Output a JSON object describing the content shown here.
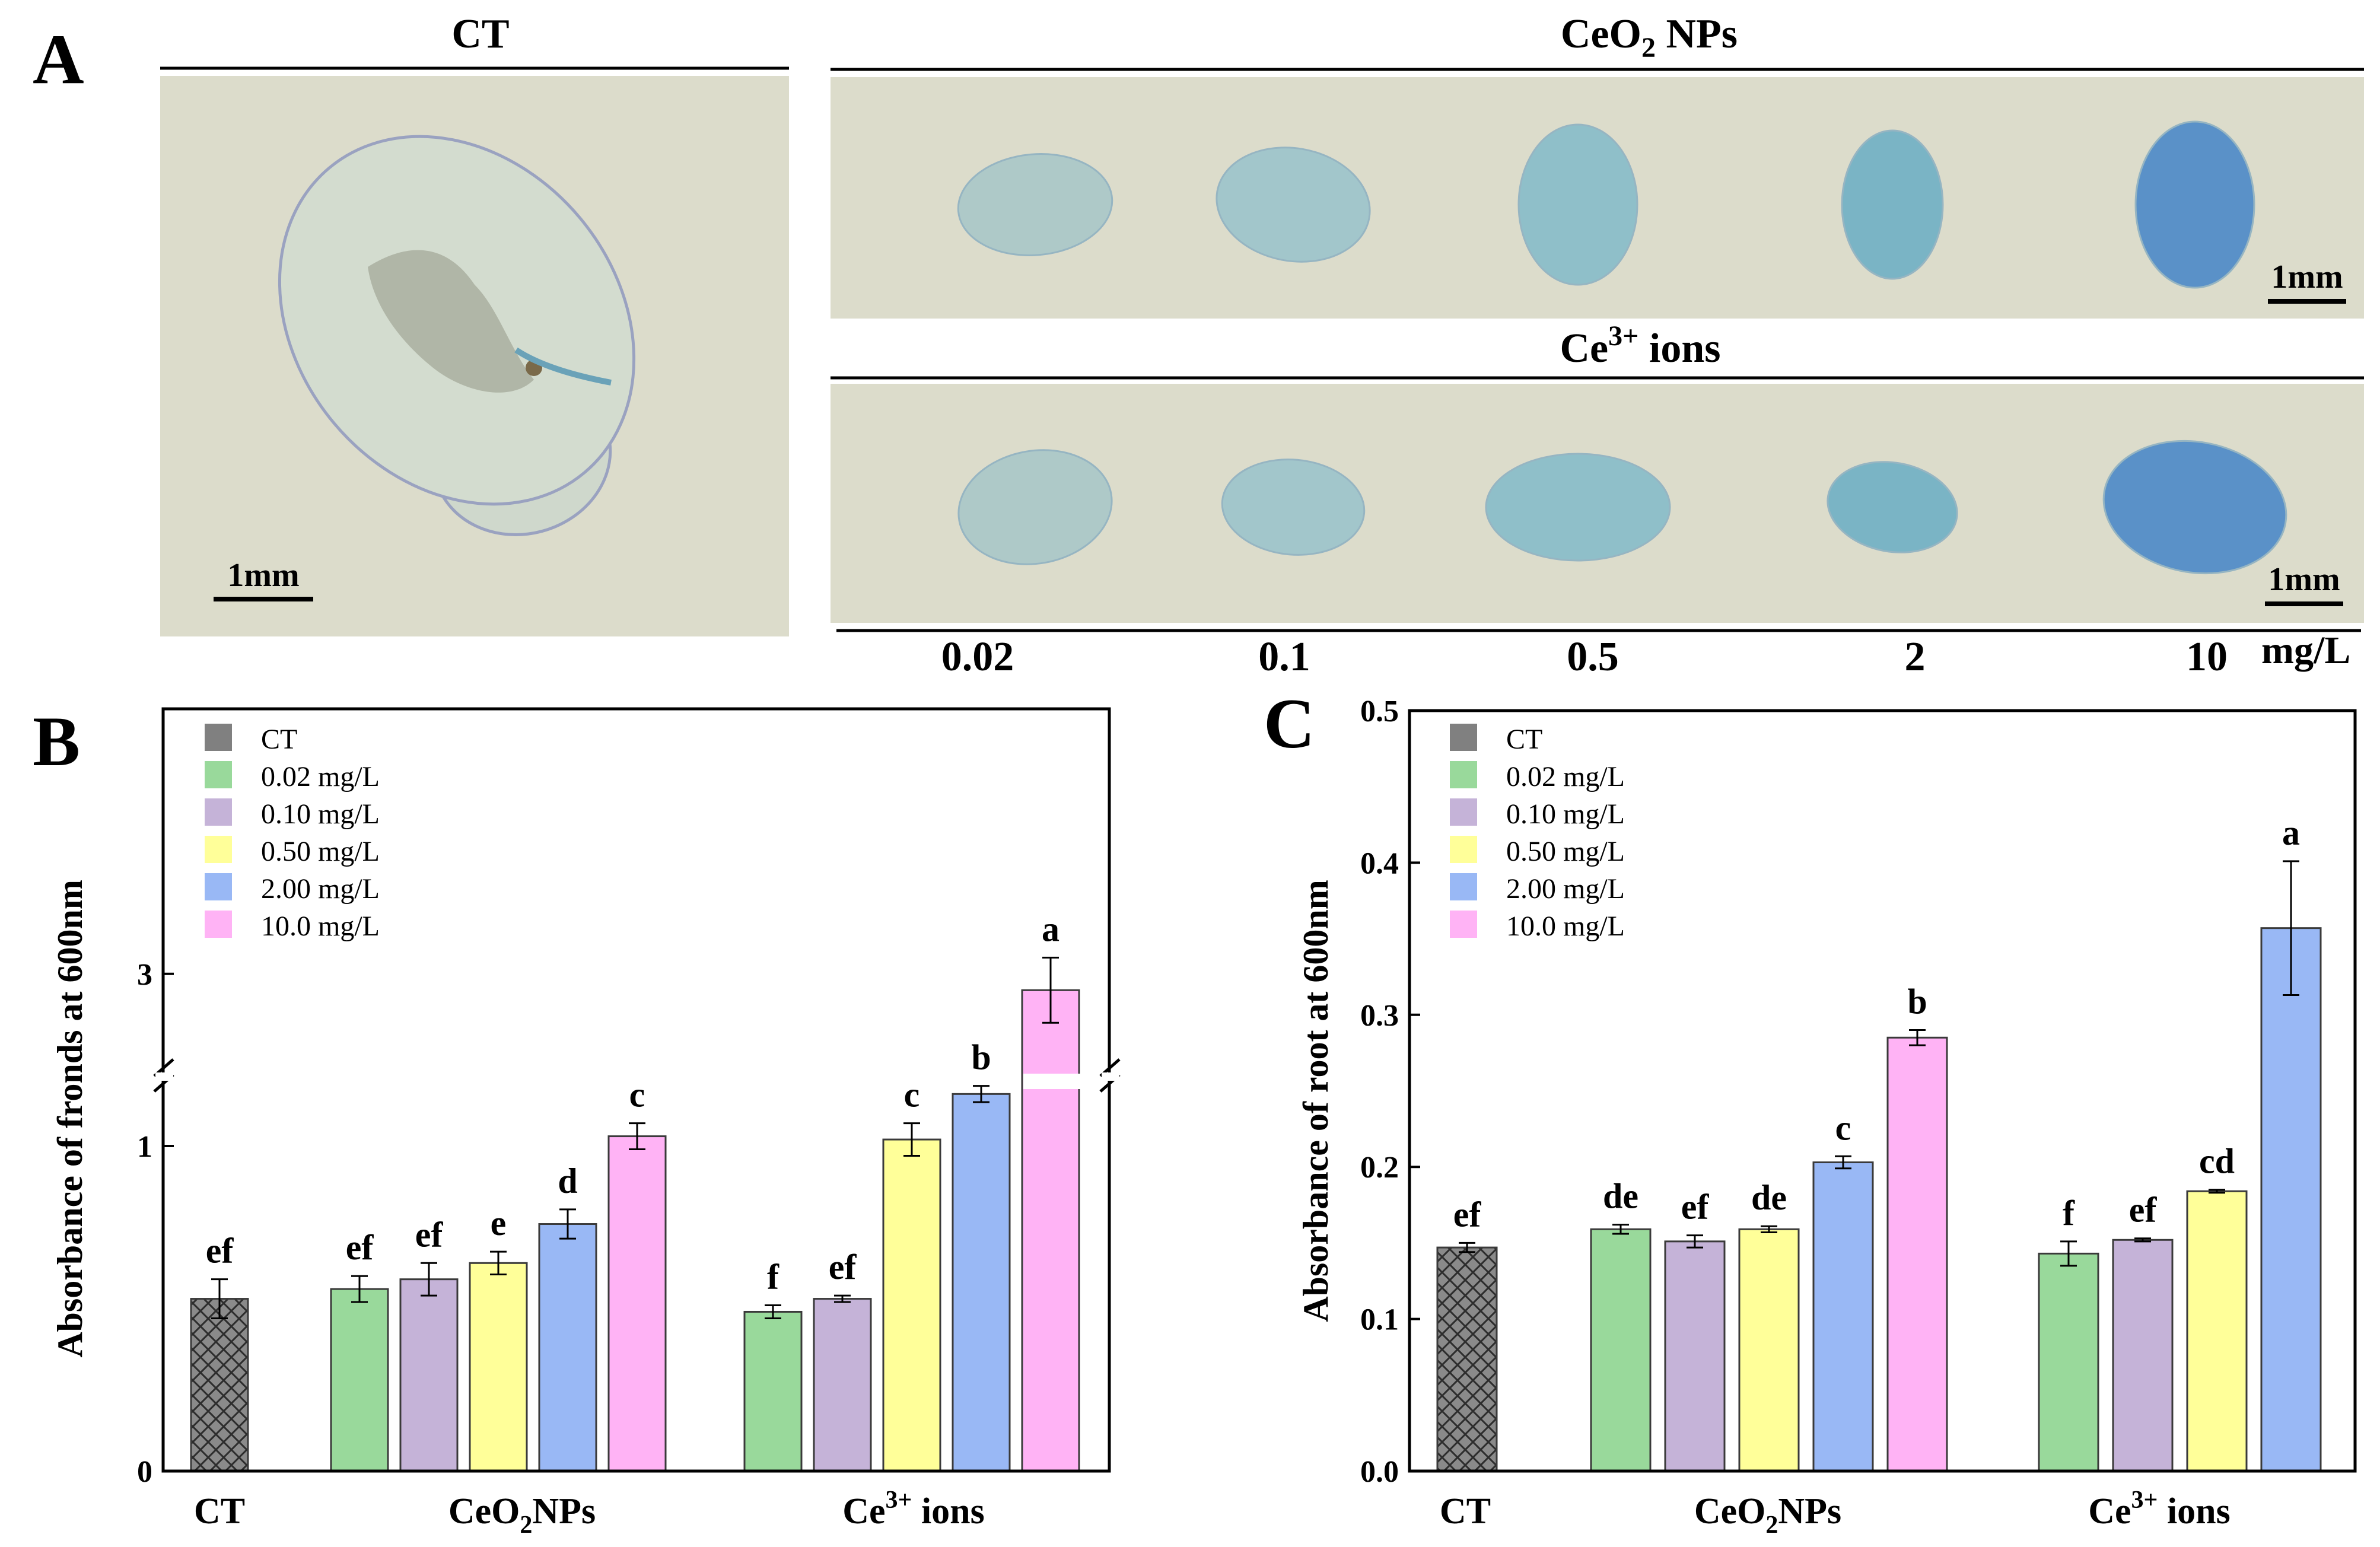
{
  "panel_labels": {
    "a": "A",
    "b": "B",
    "c": "C"
  },
  "panel_a": {
    "ct_title": "CT",
    "nps_title": "CeO",
    "nps_title_sub": "2",
    "nps_title_tail": " NPs",
    "ions_title": "Ce",
    "ions_title_sup": "3+",
    "ions_title_tail": " ions",
    "scale_bar": "1mm",
    "concentrations": [
      "0.02",
      "0.1",
      "0.5",
      "2",
      "10"
    ],
    "unit": "mg/L",
    "stain_colors": [
      "#9fc3c8",
      "#8fbfcc",
      "#76b6c9",
      "#5aa7c4",
      "#2f79c8"
    ]
  },
  "legend": {
    "items": [
      {
        "label": "CT",
        "color": "#808080"
      },
      {
        "label": "0.02 mg/L",
        "color": "#99d99b"
      },
      {
        "label": "0.10 mg/L",
        "color": "#c5b3d8"
      },
      {
        "label": "0.50 mg/L",
        "color": "#ffff99"
      },
      {
        "label": "2.00 mg/L",
        "color": "#99b8f5"
      },
      {
        "label": "10.0 mg/L",
        "color": "#ffb3f5"
      }
    ]
  },
  "chart_data": [
    {
      "type": "bar",
      "panel": "B",
      "ylabel": "Absorbance of fronds at 600nm",
      "y_ticks": [
        "0",
        "1",
        "3"
      ],
      "axis_break": [
        1.2,
        2.6
      ],
      "groups": [
        {
          "label": "CT",
          "label_sub": "",
          "label_sup": "",
          "label_tail": "",
          "bars": [
            {
              "series": "CT",
              "value": 0.53,
              "err": 0.06,
              "letter": "ef"
            }
          ]
        },
        {
          "label": "CeO",
          "label_sub": "2",
          "label_sup": "",
          "label_tail": "NPs",
          "bars": [
            {
              "series": "0.02 mg/L",
              "value": 0.56,
              "err": 0.04,
              "letter": "ef"
            },
            {
              "series": "0.10 mg/L",
              "value": 0.59,
              "err": 0.05,
              "letter": "ef"
            },
            {
              "series": "0.50 mg/L",
              "value": 0.64,
              "err": 0.035,
              "letter": "e"
            },
            {
              "series": "2.00 mg/L",
              "value": 0.76,
              "err": 0.045,
              "letter": "d"
            },
            {
              "series": "10.0 mg/L",
              "value": 1.03,
              "err": 0.04,
              "letter": "c"
            }
          ]
        },
        {
          "label": "Ce",
          "label_sub": "",
          "label_sup": "3+",
          "label_tail": " ions",
          "bars": [
            {
              "series": "0.02 mg/L",
              "value": 0.49,
              "err": 0.02,
              "letter": "f"
            },
            {
              "series": "0.10 mg/L",
              "value": 0.53,
              "err": 0.01,
              "letter": "ef"
            },
            {
              "series": "0.50 mg/L",
              "value": 1.02,
              "err": 0.05,
              "letter": "c"
            },
            {
              "series": "2.00 mg/L",
              "value": 1.16,
              "err": 0.025,
              "letter": "b"
            },
            {
              "series": "10.0 mg/L",
              "value": 2.94,
              "err": 0.12,
              "letter": "a"
            }
          ]
        }
      ]
    },
    {
      "type": "bar",
      "panel": "C",
      "ylabel": "Absorbance of root at 600nm",
      "ylim": [
        0,
        0.5
      ],
      "y_ticks": [
        "0.0",
        "0.1",
        "0.2",
        "0.3",
        "0.4",
        "0.5"
      ],
      "groups": [
        {
          "label": "CT",
          "label_sub": "",
          "label_sup": "",
          "label_tail": "",
          "bars": [
            {
              "series": "CT",
              "value": 0.147,
              "err": 0.003,
              "letter": "ef"
            }
          ]
        },
        {
          "label": "CeO",
          "label_sub": "2",
          "label_sup": "",
          "label_tail": "NPs",
          "bars": [
            {
              "series": "0.02 mg/L",
              "value": 0.159,
              "err": 0.003,
              "letter": "de"
            },
            {
              "series": "0.10 mg/L",
              "value": 0.151,
              "err": 0.004,
              "letter": "ef"
            },
            {
              "series": "0.50 mg/L",
              "value": 0.159,
              "err": 0.002,
              "letter": "de"
            },
            {
              "series": "2.00 mg/L",
              "value": 0.203,
              "err": 0.004,
              "letter": "c"
            },
            {
              "series": "10.0 mg/L",
              "value": 0.285,
              "err": 0.005,
              "letter": "b"
            }
          ]
        },
        {
          "label": "Ce",
          "label_sub": "",
          "label_sup": "3+",
          "label_tail": " ions",
          "bars": [
            {
              "series": "0.02 mg/L",
              "value": 0.143,
              "err": 0.008,
              "letter": "f"
            },
            {
              "series": "0.10 mg/L",
              "value": 0.152,
              "err": 0.001,
              "letter": "ef"
            },
            {
              "series": "0.50 mg/L",
              "value": 0.184,
              "err": 0.001,
              "letter": "cd"
            },
            {
              "series": "2.00 mg/L",
              "value": 0.357,
              "err": 0.044,
              "letter": "a"
            }
          ]
        }
      ]
    }
  ]
}
